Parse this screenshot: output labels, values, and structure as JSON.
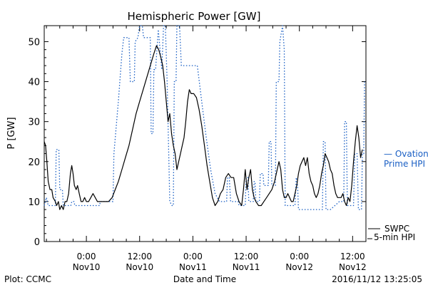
{
  "chart_data": {
    "type": "line",
    "title": "Hemispheric Power [GW]",
    "xlabel": "Date and Time",
    "ylabel": "P [GW]",
    "ylim": [
      0,
      54
    ],
    "xlim_hours": [
      -9.5,
      63
    ],
    "x_units": "hours since 2016-11-10 00:00",
    "yticks": [
      0,
      10,
      20,
      30,
      40,
      50
    ],
    "xticks": [
      {
        "x": 0,
        "time": "0:00",
        "date": "Nov10"
      },
      {
        "x": 12,
        "time": "12:00",
        "date": "Nov10"
      },
      {
        "x": 24,
        "time": "0:00",
        "date": "Nov11"
      },
      {
        "x": 36,
        "time": "12:00",
        "date": "Nov11"
      },
      {
        "x": 48,
        "time": "0:00",
        "date": "Nov12"
      },
      {
        "x": 60,
        "time": "12:00",
        "date": "Nov12"
      }
    ],
    "series": [
      {
        "name": "SWPC 5-min HPI",
        "color": "#000000",
        "style": "solid",
        "points": [
          [
            -9.5,
            25
          ],
          [
            -9.2,
            24
          ],
          [
            -8.9,
            20
          ],
          [
            -8.6,
            15
          ],
          [
            -8.2,
            13
          ],
          [
            -7.8,
            13
          ],
          [
            -7.5,
            11
          ],
          [
            -7.0,
            10
          ],
          [
            -6.7,
            9
          ],
          [
            -6.3,
            10
          ],
          [
            -6.0,
            8
          ],
          [
            -5.6,
            9
          ],
          [
            -5.2,
            8
          ],
          [
            -4.8,
            10
          ],
          [
            -4.4,
            10
          ],
          [
            -4.0,
            12
          ],
          [
            -3.6,
            17
          ],
          [
            -3.3,
            19
          ],
          [
            -3.0,
            17
          ],
          [
            -2.7,
            14
          ],
          [
            -2.3,
            13
          ],
          [
            -2.0,
            14
          ],
          [
            -1.6,
            12
          ],
          [
            -1.2,
            10
          ],
          [
            -0.8,
            10
          ],
          [
            -0.4,
            11
          ],
          [
            0.0,
            10
          ],
          [
            0.5,
            10
          ],
          [
            1.0,
            11
          ],
          [
            1.5,
            12
          ],
          [
            2.0,
            11
          ],
          [
            2.5,
            10
          ],
          [
            3.0,
            10
          ],
          [
            4.0,
            10
          ],
          [
            5.0,
            10
          ],
          [
            5.8,
            11
          ],
          [
            6.5,
            13
          ],
          [
            7.2,
            15
          ],
          [
            8.0,
            18
          ],
          [
            8.8,
            21
          ],
          [
            9.6,
            24
          ],
          [
            10.4,
            28
          ],
          [
            11.2,
            32
          ],
          [
            12.0,
            35
          ],
          [
            12.8,
            38
          ],
          [
            13.6,
            41
          ],
          [
            14.4,
            44
          ],
          [
            15.2,
            47
          ],
          [
            15.8,
            49
          ],
          [
            16.3,
            48
          ],
          [
            16.8,
            46
          ],
          [
            17.2,
            44
          ],
          [
            17.6,
            40
          ],
          [
            18.0,
            35
          ],
          [
            18.4,
            30
          ],
          [
            18.8,
            32
          ],
          [
            19.2,
            27
          ],
          [
            19.6,
            24
          ],
          [
            20.0,
            22
          ],
          [
            20.4,
            18
          ],
          [
            20.8,
            20
          ],
          [
            21.2,
            22
          ],
          [
            21.6,
            24
          ],
          [
            22.0,
            26
          ],
          [
            22.4,
            30
          ],
          [
            22.8,
            35
          ],
          [
            23.2,
            38
          ],
          [
            23.6,
            37
          ],
          [
            24.2,
            37
          ],
          [
            24.8,
            36
          ],
          [
            25.4,
            33
          ],
          [
            26.0,
            29
          ],
          [
            26.6,
            24
          ],
          [
            27.2,
            19
          ],
          [
            27.8,
            15
          ],
          [
            28.4,
            11
          ],
          [
            29.0,
            9
          ],
          [
            29.6,
            10
          ],
          [
            30.2,
            12
          ],
          [
            30.8,
            13
          ],
          [
            31.4,
            16
          ],
          [
            32.0,
            17
          ],
          [
            32.6,
            16
          ],
          [
            33.2,
            16
          ],
          [
            33.8,
            12
          ],
          [
            34.4,
            10
          ],
          [
            35.0,
            9
          ],
          [
            35.4,
            13
          ],
          [
            35.8,
            18
          ],
          [
            36.2,
            13
          ],
          [
            36.6,
            16
          ],
          [
            37.0,
            18
          ],
          [
            37.4,
            13
          ],
          [
            37.8,
            11
          ],
          [
            38.2,
            10
          ],
          [
            38.8,
            9
          ],
          [
            39.4,
            9
          ],
          [
            40.0,
            10
          ],
          [
            40.6,
            11
          ],
          [
            41.2,
            12
          ],
          [
            41.8,
            13
          ],
          [
            42.4,
            15
          ],
          [
            43.0,
            18
          ],
          [
            43.4,
            20
          ],
          [
            43.8,
            18
          ],
          [
            44.2,
            13
          ],
          [
            44.6,
            11
          ],
          [
            45.0,
            11
          ],
          [
            45.4,
            12
          ],
          [
            45.8,
            11
          ],
          [
            46.2,
            10
          ],
          [
            46.6,
            10
          ],
          [
            47.0,
            12
          ],
          [
            47.4,
            14
          ],
          [
            47.8,
            17
          ],
          [
            48.2,
            19
          ],
          [
            48.6,
            20
          ],
          [
            49.0,
            21
          ],
          [
            49.4,
            19
          ],
          [
            49.8,
            21
          ],
          [
            50.2,
            17
          ],
          [
            50.6,
            15
          ],
          [
            51.0,
            14
          ],
          [
            51.4,
            12
          ],
          [
            51.8,
            11
          ],
          [
            52.2,
            12
          ],
          [
            52.6,
            14
          ],
          [
            53.0,
            17
          ],
          [
            53.4,
            19
          ],
          [
            53.8,
            22
          ],
          [
            54.2,
            21
          ],
          [
            54.6,
            20
          ],
          [
            55.0,
            18
          ],
          [
            55.4,
            17
          ],
          [
            55.8,
            14
          ],
          [
            56.2,
            12
          ],
          [
            56.6,
            11
          ],
          [
            57.0,
            11
          ],
          [
            57.4,
            11
          ],
          [
            57.8,
            12
          ],
          [
            58.2,
            10
          ],
          [
            58.6,
            9
          ],
          [
            59.0,
            11
          ],
          [
            59.4,
            10
          ],
          [
            59.8,
            14
          ],
          [
            60.2,
            20
          ],
          [
            60.6,
            25
          ],
          [
            61.0,
            29
          ],
          [
            61.4,
            26
          ],
          [
            61.8,
            21
          ],
          [
            62.2,
            23
          ]
        ]
      },
      {
        "name": "Ovation Prime HPI",
        "color": "#1a5fc4",
        "style": "dotted",
        "points": [
          [
            -9.5,
            9
          ],
          [
            -9.0,
            11
          ],
          [
            -8.6,
            9
          ],
          [
            -7.0,
            9
          ],
          [
            -6.8,
            23
          ],
          [
            -6.2,
            23
          ],
          [
            -6.0,
            13
          ],
          [
            -5.4,
            13
          ],
          [
            -5.2,
            9
          ],
          [
            -3.5,
            9
          ],
          [
            -3.3,
            10
          ],
          [
            -2.8,
            10
          ],
          [
            -2.6,
            9
          ],
          [
            0.0,
            9
          ],
          [
            3.0,
            9
          ],
          [
            3.1,
            10
          ],
          [
            6.0,
            10
          ],
          [
            6.2,
            22
          ],
          [
            7.2,
            35
          ],
          [
            8.0,
            47
          ],
          [
            8.4,
            51
          ],
          [
            9.6,
            51
          ],
          [
            9.9,
            40
          ],
          [
            10.8,
            40
          ],
          [
            11.0,
            50
          ],
          [
            11.6,
            51
          ],
          [
            12.0,
            54
          ],
          [
            12.6,
            54
          ],
          [
            12.9,
            51
          ],
          [
            14.2,
            51
          ],
          [
            14.4,
            51
          ],
          [
            14.6,
            27
          ],
          [
            15.0,
            27
          ],
          [
            15.2,
            43
          ],
          [
            15.6,
            43
          ],
          [
            16.2,
            53
          ],
          [
            16.6,
            48
          ],
          [
            17.0,
            43
          ],
          [
            17.4,
            54
          ],
          [
            17.8,
            54
          ],
          [
            18.2,
            40
          ],
          [
            18.8,
            10
          ],
          [
            19.3,
            9
          ],
          [
            19.6,
            9
          ],
          [
            19.8,
            40
          ],
          [
            20.2,
            40
          ],
          [
            20.4,
            54
          ],
          [
            21.0,
            54
          ],
          [
            21.4,
            44
          ],
          [
            22.0,
            44
          ],
          [
            23.8,
            44
          ],
          [
            24.8,
            44
          ],
          [
            25.0,
            44
          ],
          [
            26.0,
            35
          ],
          [
            27.0,
            26
          ],
          [
            28.0,
            18
          ],
          [
            29.0,
            12
          ],
          [
            30.0,
            10
          ],
          [
            31.0,
            10
          ],
          [
            31.6,
            10
          ],
          [
            31.8,
            16
          ],
          [
            32.2,
            16
          ],
          [
            32.5,
            10
          ],
          [
            34.2,
            10
          ],
          [
            34.4,
            9
          ],
          [
            35.8,
            9
          ],
          [
            36.0,
            16
          ],
          [
            36.4,
            16
          ],
          [
            36.6,
            10
          ],
          [
            37.6,
            10
          ],
          [
            37.8,
            15
          ],
          [
            38.0,
            15
          ],
          [
            38.2,
            10
          ],
          [
            39.0,
            10
          ],
          [
            39.2,
            17
          ],
          [
            39.8,
            17
          ],
          [
            40.0,
            14
          ],
          [
            41.0,
            14
          ],
          [
            41.2,
            25
          ],
          [
            41.6,
            25
          ],
          [
            41.8,
            14
          ],
          [
            42.6,
            14
          ],
          [
            42.8,
            40
          ],
          [
            43.4,
            40
          ],
          [
            43.6,
            50
          ],
          [
            44.2,
            54
          ],
          [
            44.6,
            48
          ],
          [
            44.8,
            9
          ],
          [
            46.0,
            9
          ],
          [
            47.0,
            9
          ],
          [
            47.3,
            16
          ],
          [
            47.6,
            14
          ],
          [
            47.8,
            8
          ],
          [
            50.0,
            8
          ],
          [
            52.0,
            8
          ],
          [
            53.2,
            8
          ],
          [
            53.4,
            25
          ],
          [
            53.8,
            25
          ],
          [
            54.0,
            8
          ],
          [
            55.0,
            8
          ],
          [
            56.0,
            9
          ],
          [
            57.0,
            10
          ],
          [
            58.0,
            10
          ],
          [
            58.2,
            30
          ],
          [
            58.6,
            30
          ],
          [
            58.8,
            9
          ],
          [
            60.2,
            9
          ],
          [
            60.5,
            22
          ],
          [
            61.0,
            22
          ],
          [
            61.3,
            8
          ],
          [
            62.0,
            8
          ],
          [
            62.2,
            22
          ],
          [
            62.5,
            22
          ],
          [
            62.7,
            40
          ]
        ]
      }
    ]
  },
  "legend": {
    "ovation": "— Ovation\nPrime HPI",
    "swpc": "SWPC\n5-min HPI"
  },
  "footer": {
    "left": "Plot: CCMC",
    "center": "Date and Time",
    "right": "2016/11/12 13:25:05"
  }
}
